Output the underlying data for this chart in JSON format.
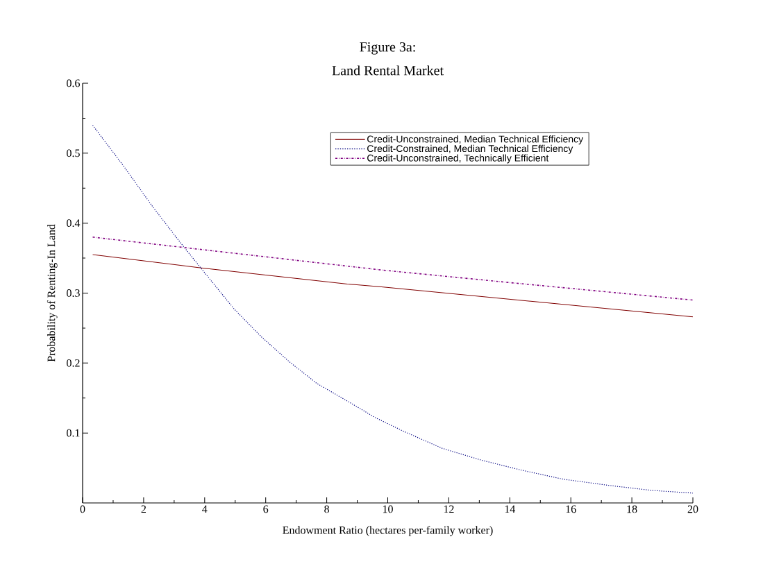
{
  "chart_data": {
    "type": "line",
    "title": "Figure 3a:",
    "subtitle": "Land Rental Market",
    "xlabel": "Endowment Ratio (hectares per-family worker)",
    "ylabel": "Probability of Renting-In Land",
    "xlim": [
      0,
      20
    ],
    "ylim": [
      0,
      0.6
    ],
    "xticks": [
      0,
      2,
      4,
      6,
      8,
      10,
      12,
      14,
      16,
      18,
      20
    ],
    "yticks": [
      0.1,
      0.2,
      0.3,
      0.4,
      0.5,
      0.6
    ],
    "grid": false,
    "legend": "top right",
    "marker": "none",
    "series": [
      {
        "name": "Credit-Unconstrained, Median Technical Efficiency",
        "color": "#800000",
        "line_style": "solid",
        "x": [
          0.33,
          3.89,
          8.68,
          9.79,
          20
        ],
        "values": [
          0.355,
          0.336,
          0.313,
          0.309,
          0.266
        ]
      },
      {
        "name": "Credit-Constrained, Median Technical Efficiency",
        "color": "#000080",
        "line_style": "dotted",
        "x": [
          0.33,
          1.37,
          2.27,
          3.17,
          3.89,
          4.97,
          5.87,
          6.77,
          7.67,
          8.74,
          9.59,
          10.54,
          11.79,
          13.08,
          14.37,
          15.74,
          17.26,
          18.63,
          20
        ],
        "values": [
          0.54,
          0.48,
          0.425,
          0.374,
          0.335,
          0.277,
          0.237,
          0.202,
          0.171,
          0.144,
          0.122,
          0.102,
          0.078,
          0.061,
          0.047,
          0.034,
          0.025,
          0.018,
          0.014
        ]
      },
      {
        "name": "Credit-Unconstrained, Technically Efficient",
        "color": "#800080",
        "line_style": "dashdot",
        "x": [
          0.33,
          9.79,
          14.0,
          20
        ],
        "values": [
          0.38,
          0.333,
          0.315,
          0.29
        ]
      }
    ]
  }
}
